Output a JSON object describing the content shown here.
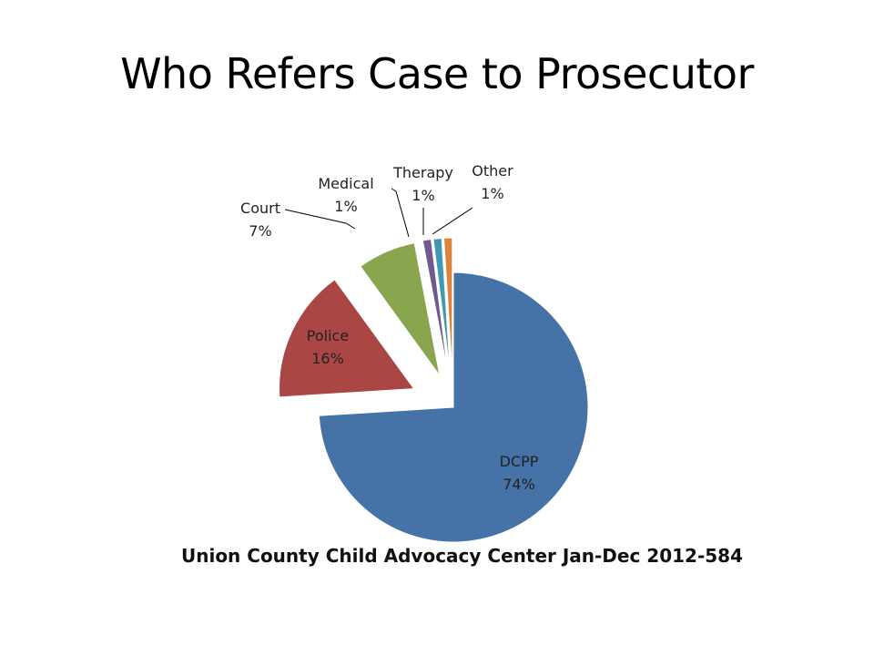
{
  "slide": {
    "title": "Who Refers Case to Prosecutor",
    "caption": "Union County Child Advocacy Center Jan-Dec 2012-584"
  },
  "chart_data": {
    "type": "pie",
    "title": "",
    "exploded": true,
    "legend": "none",
    "slices": [
      {
        "name": "DCPP",
        "value": 74,
        "label": "74%",
        "color": "#4572A7"
      },
      {
        "name": "Police",
        "value": 16,
        "label": "16%",
        "color": "#AA4643"
      },
      {
        "name": "Court",
        "value": 7,
        "label": "7%",
        "color": "#89A54E"
      },
      {
        "name": "Medical",
        "value": 1,
        "label": "1%",
        "color": "#71588F"
      },
      {
        "name": "Therapy",
        "value": 1,
        "label": "1%",
        "color": "#4198AF"
      },
      {
        "name": "Other",
        "value": 1,
        "label": "1%",
        "color": "#DB843D"
      }
    ]
  }
}
